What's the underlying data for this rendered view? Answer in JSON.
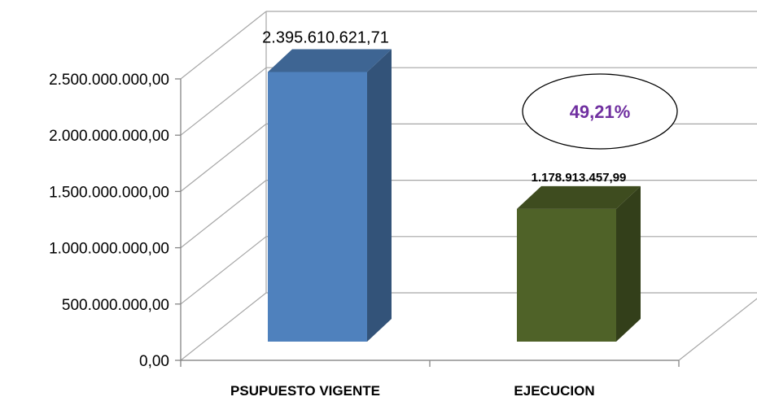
{
  "chart_data": {
    "type": "bar",
    "categories": [
      "PSUPUESTO VIGENTE",
      "EJECUCION"
    ],
    "values": [
      2395610621.71,
      1178913457.99
    ],
    "value_labels": [
      "2.395.610.621,71",
      "1.178.913.457,99"
    ],
    "ylim": [
      0,
      2500000000
    ],
    "yticks": [
      0,
      500000000,
      1000000000,
      1500000000,
      2000000000,
      2500000000
    ],
    "ytick_labels": [
      "0,00",
      "500.000.000,00",
      "1.000.000.000,00",
      "1.500.000.000,00",
      "2.000.000.000,00",
      "2.500.000.000,00"
    ],
    "grid": true,
    "style": "3d-column",
    "colors": [
      "#4f81bd",
      "#4f6228"
    ],
    "annotation": {
      "text": "49,21%",
      "color": "#7030a0",
      "shape": "ellipse"
    }
  }
}
